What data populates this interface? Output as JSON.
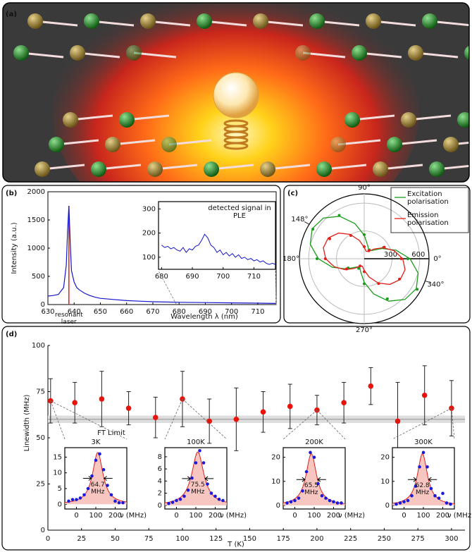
{
  "image": {
    "label": "(a)"
  },
  "chart_data": [
    {
      "type": "line",
      "panel": "(b)",
      "xlabel": "Wavelength λ (nm)",
      "ylabel": "Intensity (a.u.)",
      "xlim": [
        630,
        717
      ],
      "ylim": [
        0,
        2000
      ],
      "xticks": [
        630,
        640,
        650,
        660,
        670,
        680,
        690,
        700,
        710
      ],
      "yticks": [
        0,
        500,
        1000,
        1500,
        2000
      ],
      "color": "#1515cc",
      "x": [
        630,
        632,
        634,
        636,
        637,
        637.5,
        638,
        638.5,
        639,
        640,
        641,
        642,
        644,
        646,
        648,
        650,
        655,
        660,
        665,
        670,
        675,
        680,
        690,
        700,
        710,
        717
      ],
      "values": [
        150,
        160,
        180,
        300,
        700,
        1300,
        1750,
        1100,
        600,
        400,
        300,
        260,
        200,
        160,
        130,
        110,
        90,
        70,
        60,
        50,
        45,
        40,
        35,
        30,
        25,
        20
      ],
      "laser": {
        "label": "resonant laser",
        "x": 638,
        "value": 1750,
        "color": "#e0201b"
      },
      "inset": {
        "title": "detected signal in PLE",
        "xlim": [
          679,
          717
        ],
        "ylim": [
          50,
          330
        ],
        "xticks": [
          680,
          690,
          700,
          710
        ],
        "yticks": [
          100,
          200,
          300
        ],
        "x": [
          680,
          681,
          682,
          683,
          684,
          685,
          686,
          687,
          688,
          689,
          690,
          691,
          692,
          693,
          694,
          695,
          696,
          697,
          698,
          699,
          700,
          701,
          702,
          703,
          704,
          705,
          706,
          707,
          708,
          709,
          710,
          711,
          712,
          713,
          714,
          715,
          716,
          717
        ],
        "values": [
          150,
          140,
          145,
          135,
          140,
          130,
          125,
          140,
          120,
          135,
          130,
          145,
          150,
          170,
          195,
          180,
          150,
          140,
          120,
          130,
          110,
          120,
          105,
          115,
          100,
          110,
          95,
          100,
          90,
          95,
          85,
          90,
          80,
          85,
          75,
          70,
          75,
          70
        ]
      }
    },
    {
      "type": "polar",
      "panel": "(c)",
      "rlim": [
        0,
        700
      ],
      "rticks": [
        300,
        600
      ],
      "angle_ticks": [
        {
          "value": 0,
          "label": "0°"
        },
        {
          "value": 90,
          "label": "90°"
        },
        {
          "value": 180,
          "label": "180°"
        },
        {
          "value": 270,
          "label": "270°"
        }
      ],
      "annotations": [
        {
          "value": 148,
          "label": "148°"
        },
        {
          "value": 340,
          "label": "340°"
        }
      ],
      "theta": [
        0,
        30,
        60,
        90,
        120,
        150,
        180,
        210,
        240,
        270,
        300,
        330
      ],
      "fit_theta": [
        0,
        15,
        30,
        45,
        60,
        75,
        90,
        105,
        120,
        135,
        150,
        165,
        180,
        195,
        210,
        225,
        240,
        255,
        270,
        285,
        300,
        315,
        330,
        345
      ],
      "series": [
        {
          "name": "Excitation polarisation",
          "color": "#1c9c1c",
          "values": [
            470,
            240,
            110,
            260,
            540,
            640,
            510,
            200,
            120,
            270,
            500,
            660
          ],
          "fit_values": [
            495,
            356,
            221,
            128,
            101,
            147,
            254,
            394,
            529,
            622,
            649,
            603,
            495,
            356,
            221,
            128,
            101,
            147,
            254,
            394,
            529,
            622,
            649,
            603
          ]
        },
        {
          "name": "Emission polarisation",
          "color": "#e0201b",
          "values": [
            400,
            250,
            100,
            130,
            290,
            430,
            420,
            220,
            90,
            140,
            310,
            440
          ],
          "fit_values": [
            416,
            335,
            237,
            148,
            91,
            83,
            124,
            205,
            303,
            392,
            449,
            457,
            416,
            335,
            237,
            148,
            91,
            83,
            124,
            205,
            303,
            392,
            449,
            457
          ]
        }
      ]
    },
    {
      "type": "errorbar",
      "panel": "(d)",
      "xlabel": "T (K)",
      "ylabel": "Linewidth (MHz)",
      "xlim": [
        0,
        310
      ],
      "ylim": [
        0,
        100
      ],
      "xticks": [
        0,
        25,
        50,
        75,
        100,
        125,
        150,
        175,
        200,
        225,
        250,
        275,
        300
      ],
      "yticks": [
        0,
        25,
        50,
        75,
        100
      ],
      "color": "#e8140c",
      "x": [
        2,
        20,
        40,
        60,
        80,
        100,
        120,
        140,
        160,
        180,
        200,
        220,
        240,
        260,
        280,
        300
      ],
      "values": [
        70,
        69,
        71,
        66,
        61,
        71,
        59,
        60,
        64,
        67,
        65,
        69,
        78,
        59,
        73,
        66
      ],
      "errors": [
        12,
        11,
        15,
        9,
        11,
        15,
        12,
        17,
        11,
        12,
        8,
        11,
        10,
        21,
        16,
        15
      ],
      "ft_limit": {
        "label": "FT Limit",
        "band": [
          58,
          62
        ]
      },
      "insets": [
        {
          "title": "3K",
          "fwhm": 64.7,
          "fwhm_label": "64.7 MHz",
          "center": 110,
          "peak": 16.5,
          "xlabel": "ν (MHz)",
          "xlim": [
            -60,
            260
          ],
          "ylim": [
            -1.5,
            18
          ],
          "xticks": [
            0,
            100,
            200
          ],
          "yticks": [
            0,
            5,
            10,
            15
          ],
          "x": [
            -40,
            -20,
            0,
            20,
            40,
            60,
            80,
            100,
            120,
            140,
            160,
            180,
            200,
            220,
            240
          ],
          "values": [
            1,
            1.5,
            1.5,
            2,
            3,
            5,
            9,
            14,
            16,
            11,
            6,
            3,
            1,
            0.5,
            0.5
          ]
        },
        {
          "title": "100K",
          "fwhm": 75.5,
          "fwhm_label": "75.5 MHz",
          "center": 110,
          "peak": 8.8,
          "xlabel": "ν (MHz)",
          "xlim": [
            -60,
            260
          ],
          "ylim": [
            -0.6,
            9.5
          ],
          "xticks": [
            0,
            100,
            200
          ],
          "yticks": [
            0,
            2,
            4,
            6,
            8
          ],
          "x": [
            -40,
            -20,
            0,
            20,
            40,
            60,
            80,
            100,
            120,
            140,
            160,
            180,
            200,
            220,
            240
          ],
          "values": [
            0.3,
            0.5,
            0.8,
            1,
            1.5,
            2.5,
            4.5,
            7,
            9,
            7,
            3.5,
            2,
            1.5,
            1,
            0.8
          ]
        },
        {
          "title": "200K",
          "fwhm": 65.5,
          "fwhm_label": "65.5 MHz",
          "center": 85,
          "peak": 21.5,
          "xlabel": "ν (MHz)",
          "xlim": [
            -60,
            260
          ],
          "ylim": [
            -1.5,
            24
          ],
          "xticks": [
            0,
            100,
            200
          ],
          "yticks": [
            0,
            10,
            20
          ],
          "x": [
            -40,
            -20,
            0,
            20,
            40,
            60,
            80,
            100,
            120,
            140,
            160,
            180,
            200,
            220,
            240
          ],
          "values": [
            1,
            1.5,
            2,
            3,
            6,
            14,
            22,
            20,
            9,
            4,
            3,
            2,
            1.5,
            1,
            1
          ]
        },
        {
          "title": "300K",
          "fwhm": 62.8,
          "fwhm_label": "62.8 MHz",
          "center": 95,
          "peak": 21.5,
          "xlabel": "ν (MHz)",
          "xlim": [
            -60,
            260
          ],
          "ylim": [
            -1.5,
            24
          ],
          "xticks": [
            0,
            100,
            200
          ],
          "yticks": [
            0,
            10,
            20
          ],
          "x": [
            -40,
            -20,
            0,
            20,
            40,
            60,
            80,
            100,
            120,
            140,
            160,
            180,
            200,
            220,
            240
          ],
          "values": [
            0.5,
            1,
            1.5,
            2,
            4,
            8,
            16,
            22,
            16,
            7,
            4,
            3,
            5,
            1,
            0.5
          ]
        }
      ]
    }
  ]
}
